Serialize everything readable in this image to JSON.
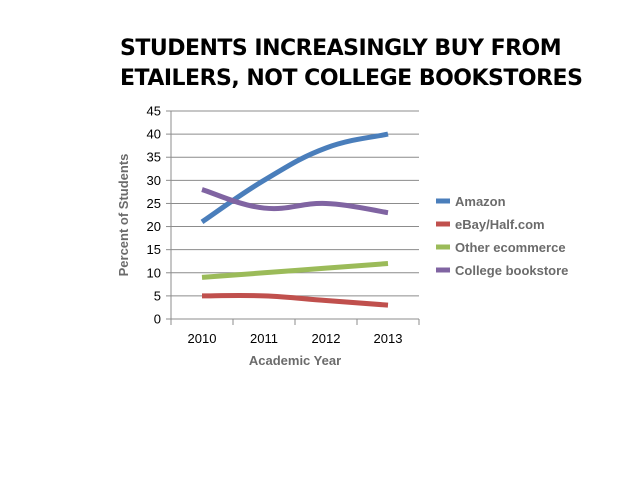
{
  "title_lines": [
    "STUDENTS INCREASINGLY BUY FROM",
    "ETAILERS, NOT COLLEGE BOOKSTORES"
  ],
  "chart_data": {
    "type": "line",
    "title": "STUDENTS INCREASINGLY BUY FROM ETAILERS, NOT COLLEGE BOOKSTORES",
    "xlabel": "Academic Year",
    "ylabel": "Percent of Students",
    "categories": [
      "2010",
      "2011",
      "2012",
      "2013"
    ],
    "ylim": [
      0,
      45
    ],
    "yticks": [
      "0",
      "5",
      "10",
      "15",
      "20",
      "25",
      "30",
      "35",
      "40",
      "45"
    ],
    "grid": true,
    "legend_position": "right",
    "series": [
      {
        "name": "Amazon",
        "values": [
          21,
          30,
          37,
          40
        ],
        "color": "#4a7ebb"
      },
      {
        "name": "eBay/Half.com",
        "values": [
          5,
          5,
          4,
          3
        ],
        "color": "#c0504d"
      },
      {
        "name": "Other ecommerce",
        "values": [
          9,
          10,
          11,
          12
        ],
        "color": "#9bbb59"
      },
      {
        "name": "College bookstore",
        "values": [
          28,
          24,
          25,
          23
        ],
        "color": "#8064a2"
      }
    ]
  }
}
